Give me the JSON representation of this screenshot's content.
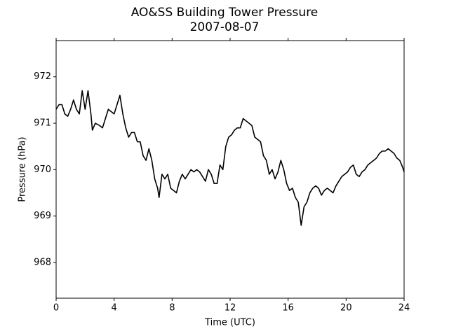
{
  "chart_data": {
    "type": "line",
    "title": "AO&SS Building Tower Pressure",
    "subtitle": "2007-08-07",
    "xlabel": "Time (UTC)",
    "ylabel": "Pressure (hPa)",
    "color": "#000000",
    "xlim": [
      0,
      24
    ],
    "xticks": [
      0,
      4,
      8,
      12,
      16,
      20,
      24
    ],
    "ylim": [
      967.23,
      972.78
    ],
    "yticks": [
      968,
      969,
      970,
      971,
      972
    ],
    "x": [
      0,
      0.2,
      0.4,
      0.6,
      0.8,
      1.0,
      1.2,
      1.4,
      1.6,
      1.8,
      2.0,
      2.2,
      2.4,
      2.5,
      2.7,
      3.0,
      3.2,
      3.4,
      3.6,
      3.8,
      4.0,
      4.2,
      4.4,
      4.6,
      4.8,
      5.0,
      5.2,
      5.4,
      5.6,
      5.8,
      6.0,
      6.2,
      6.4,
      6.6,
      6.8,
      7.0,
      7.1,
      7.3,
      7.5,
      7.7,
      7.9,
      8.1,
      8.3,
      8.5,
      8.7,
      8.9,
      9.1,
      9.3,
      9.5,
      9.7,
      9.9,
      10.1,
      10.3,
      10.5,
      10.7,
      10.9,
      11.1,
      11.3,
      11.5,
      11.7,
      11.9,
      12.1,
      12.3,
      12.5,
      12.7,
      12.9,
      13.1,
      13.3,
      13.5,
      13.7,
      13.9,
      14.1,
      14.3,
      14.5,
      14.7,
      14.9,
      15.1,
      15.3,
      15.5,
      15.7,
      15.9,
      16.1,
      16.3,
      16.5,
      16.7,
      16.9,
      17.1,
      17.3,
      17.5,
      17.7,
      17.9,
      18.1,
      18.3,
      18.5,
      18.7,
      18.9,
      19.1,
      19.3,
      19.5,
      19.7,
      19.9,
      20.1,
      20.3,
      20.5,
      20.7,
      20.9,
      21.1,
      21.3,
      21.5,
      21.7,
      21.9,
      22.1,
      22.3,
      22.5,
      22.7,
      22.9,
      23.1,
      23.3,
      23.5,
      23.7,
      23.9,
      24.0
    ],
    "values": [
      971.3,
      971.4,
      971.4,
      971.2,
      971.15,
      971.3,
      971.5,
      971.3,
      971.2,
      971.7,
      971.3,
      971.7,
      971.2,
      970.85,
      971.0,
      970.95,
      970.9,
      971.1,
      971.3,
      971.25,
      971.2,
      971.4,
      971.6,
      971.2,
      970.9,
      970.7,
      970.8,
      970.8,
      970.6,
      970.6,
      970.3,
      970.2,
      970.45,
      970.2,
      969.8,
      969.6,
      969.4,
      969.9,
      969.8,
      969.9,
      969.6,
      969.55,
      969.5,
      969.75,
      969.9,
      969.8,
      969.9,
      970.0,
      969.95,
      970.0,
      969.95,
      969.85,
      969.75,
      970.0,
      969.9,
      969.7,
      969.7,
      970.1,
      970.0,
      970.5,
      970.7,
      970.75,
      970.85,
      970.9,
      970.9,
      971.1,
      971.05,
      971.0,
      970.95,
      970.7,
      970.65,
      970.6,
      970.3,
      970.2,
      969.9,
      970.0,
      969.8,
      969.95,
      970.2,
      970.0,
      969.7,
      969.55,
      969.6,
      969.4,
      969.3,
      968.8,
      969.2,
      969.3,
      969.5,
      969.6,
      969.65,
      969.6,
      969.45,
      969.55,
      969.6,
      969.55,
      969.5,
      969.65,
      969.75,
      969.85,
      969.9,
      969.95,
      970.05,
      970.1,
      969.9,
      969.85,
      969.95,
      970.0,
      970.1,
      970.15,
      970.2,
      970.25,
      970.35,
      970.4,
      970.4,
      970.45,
      970.4,
      970.35,
      970.25,
      970.2,
      970.05,
      969.95
    ]
  }
}
